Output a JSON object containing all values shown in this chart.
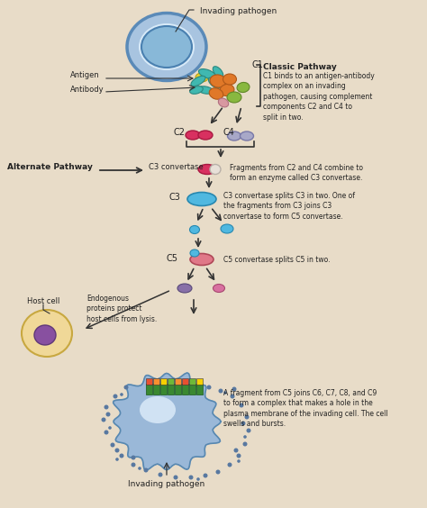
{
  "bg_color": "#e8dcc8",
  "classic_pathway_title": "Classic Pathway",
  "classic_pathway_text": "C1 binds to an antigen-antibody\ncomplex on an invading\npathogen, causing complement\ncomponents C2 and C4 to\nsplit in two.",
  "alternate_pathway_label": "Alternate Pathway",
  "c3_convertase_label": "C3 convertase",
  "c3_text": "C3 convertase splits C3 in two. One of\nthe fragments from C3 joins C3\nconvertase to form C5 convertase.",
  "c5_text": "C5 convertase splits C5 in two.",
  "c2c4_text": "Fragments from C2 and C4 combine to\nform an enzyme called C3 convertase.",
  "host_cell_label": "Host cell",
  "endogenous_text": "Endogenous\nproteins protect\nhost cells from lysis.",
  "final_text": "A fragment from C5 joins C6, C7, C8, and C9\nto form a complex that makes a hole in the\nplasma membrane of the invading cell. The cell\nswells and bursts.",
  "invading_pathogen_label": "Invading pathogen",
  "antigen_label": "Antigen",
  "antibody_label": "Antibody",
  "cell_outer_color": "#a8c4e0",
  "cell_outer_edge": "#5a8ab8",
  "cell_inner_color": "#88b8d8",
  "cell_inner_edge": "#4a80b0",
  "teal_color": "#40b8b0",
  "teal_edge": "#2a8880",
  "orange_color": "#e07828",
  "orange_edge": "#b05818",
  "green_color": "#88b840",
  "green_edge": "#608828",
  "yellow_color": "#e8d030",
  "yellow_edge": "#b8a010",
  "red_pill_color": "#d83060",
  "red_pill_edge": "#a81840",
  "lavender_pill_color": "#a8a8c8",
  "lavender_pill_edge": "#7878a8",
  "pink_pill_color": "#e07888",
  "pink_pill_edge": "#b04858",
  "white_pill_color": "#e8e0d8",
  "white_pill_edge": "#b8b0a8",
  "blue_blob_color": "#50b8e0",
  "blue_blob_edge": "#2888b0",
  "purple_frag_color": "#8870a8",
  "purple_frag_edge": "#584878",
  "pink_frag_color": "#d870a0",
  "pink_frag_edge": "#a84870",
  "host_outer_color": "#f0d898",
  "host_outer_edge": "#c8a840",
  "host_nucleus_color": "#8850a0",
  "host_nucleus_edge": "#603878",
  "final_cell_color": "#9ab8d8",
  "final_cell_edge": "#5888b0",
  "dot_color": "#5878a0"
}
